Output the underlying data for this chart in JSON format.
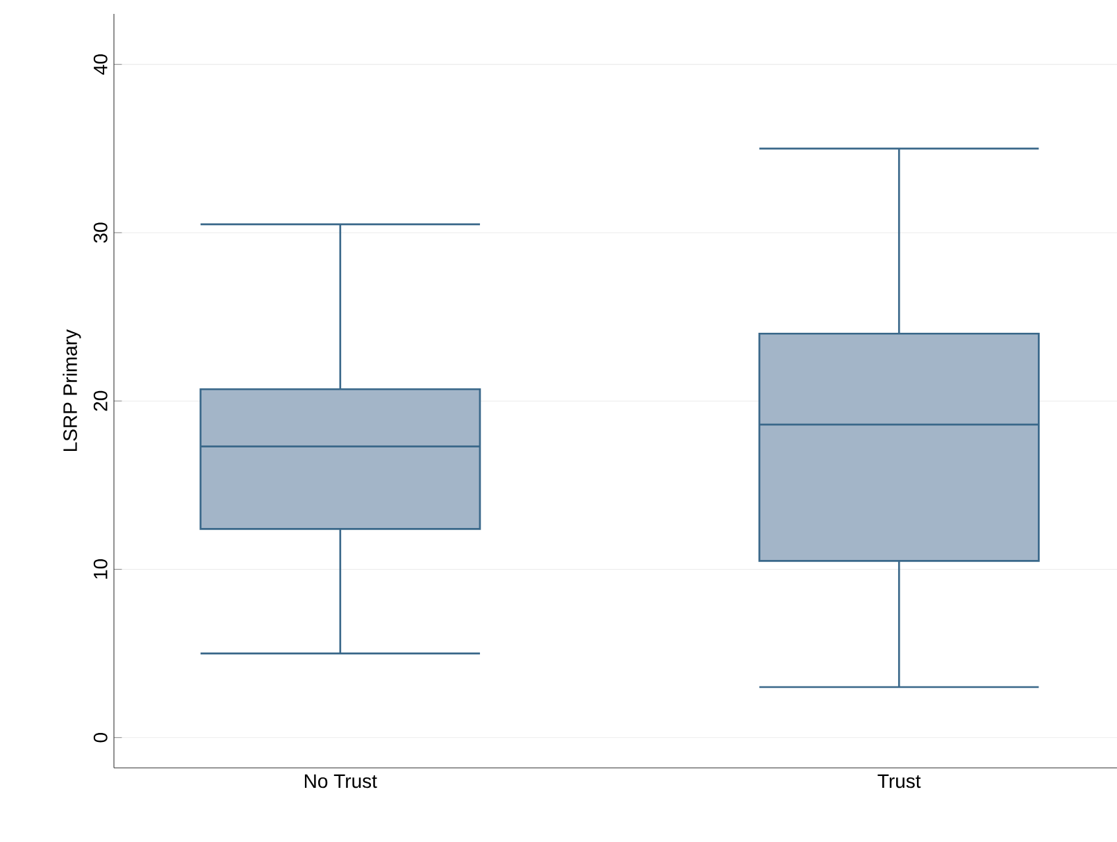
{
  "chart_data": {
    "type": "box",
    "ylabel": "LSRP Primary",
    "categories": [
      "No Trust",
      "Trust"
    ],
    "boxes": [
      {
        "low": 5.0,
        "q1": 12.4,
        "median": 17.3,
        "q3": 20.7,
        "high": 30.5
      },
      {
        "low": 3.0,
        "q1": 10.5,
        "median": 18.6,
        "q3": 24.0,
        "high": 35.0
      }
    ],
    "color": "#a3b5c8",
    "ylim": [
      -1.8,
      43
    ],
    "yticks": [
      0,
      10,
      20,
      30,
      40
    ],
    "grid": "y"
  }
}
